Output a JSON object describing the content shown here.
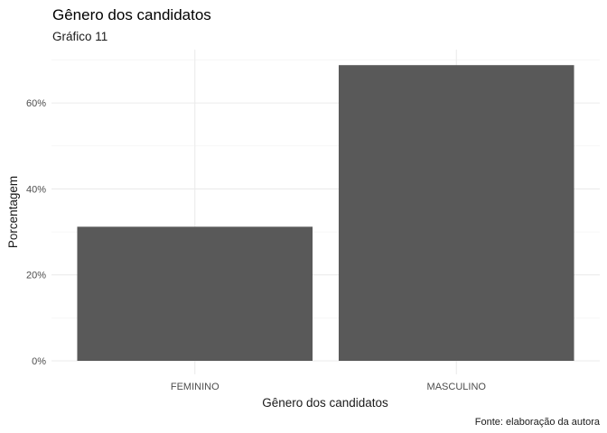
{
  "chart_data": {
    "type": "bar",
    "title": "Gênero dos candidatos",
    "subtitle": "Gráfico 11",
    "xlabel": "Gênero dos candidatos",
    "ylabel": "Porcentagem",
    "caption": "Fonte: elaboração da autora",
    "categories": [
      "FEMININO",
      "MASCULINO"
    ],
    "values": [
      31.2,
      68.8
    ],
    "y_ticks": [
      0,
      20,
      40,
      60
    ],
    "y_tick_labels": [
      "0%",
      "20%",
      "40%",
      "60%"
    ],
    "ylim": [
      0,
      72.2
    ],
    "grid": true,
    "legend": "none",
    "bar_color": "#595959",
    "grid_color": "#ebebeb",
    "background_color": "#ffffff"
  }
}
